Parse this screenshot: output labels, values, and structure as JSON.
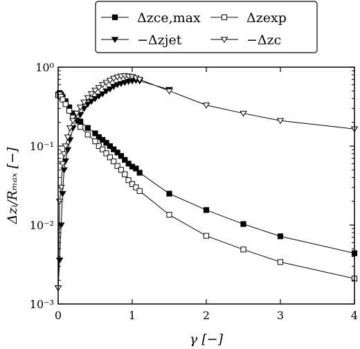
{
  "chart_data": {
    "type": "line",
    "xlabel": "γ [−]",
    "ylabel": "Δzᵢ/Rₘₐₓ [−]",
    "xlim": [
      0,
      4
    ],
    "ylim": [
      0.001,
      1
    ],
    "yscale": "log",
    "grid": false,
    "legend_position": "top-center",
    "x_ticks": [
      {
        "value": 0,
        "label": "0"
      },
      {
        "value": 1,
        "label": "1"
      },
      {
        "value": 2,
        "label": "2"
      },
      {
        "value": 3,
        "label": "3"
      },
      {
        "value": 4,
        "label": "4"
      }
    ],
    "y_ticks": [
      {
        "value": 0.001,
        "label": "10⁻³"
      },
      {
        "value": 0.01,
        "label": "10⁻²"
      },
      {
        "value": 0.1,
        "label": "10⁻¹"
      },
      {
        "value": 1,
        "label": "10⁰"
      }
    ],
    "series": [
      {
        "name": "Δz_ce,max",
        "legend_label": "Δzce,max",
        "marker": "square-filled",
        "color": "#000000",
        "x": [
          0.0,
          0.02,
          0.04,
          0.06,
          0.1,
          0.15,
          0.2,
          0.3,
          0.4,
          0.5,
          0.55,
          0.6,
          0.65,
          0.7,
          0.75,
          0.8,
          0.85,
          0.9,
          0.95,
          1.0,
          1.05,
          1.1,
          1.5,
          2.0,
          2.5,
          3.0,
          4.0
        ],
        "y": [
          0.45,
          0.47,
          0.45,
          0.42,
          0.37,
          0.31,
          0.26,
          0.205,
          0.17,
          0.145,
          0.13,
          0.12,
          0.11,
          0.1,
          0.091,
          0.083,
          0.075,
          0.067,
          0.06,
          0.055,
          0.052,
          0.046,
          0.025,
          0.0155,
          0.0103,
          0.0072,
          0.0044
        ]
      },
      {
        "name": "Δz_exp",
        "legend_label": "Δzexp",
        "marker": "square-open",
        "color": "#000000",
        "x": [
          0.0,
          0.02,
          0.04,
          0.06,
          0.1,
          0.15,
          0.2,
          0.3,
          0.4,
          0.5,
          0.55,
          0.6,
          0.65,
          0.7,
          0.75,
          0.8,
          0.85,
          0.9,
          0.95,
          1.0,
          1.05,
          1.1,
          1.5,
          2.0,
          2.5,
          3.0,
          4.0
        ],
        "y": [
          0.44,
          0.45,
          0.42,
          0.39,
          0.34,
          0.28,
          0.23,
          0.175,
          0.14,
          0.115,
          0.1,
          0.091,
          0.081,
          0.072,
          0.064,
          0.056,
          0.05,
          0.044,
          0.037,
          0.033,
          0.03,
          0.027,
          0.0135,
          0.0073,
          0.0049,
          0.0034,
          0.0021
        ]
      },
      {
        "name": "−Δz_jet",
        "legend_label": "−Δzjet",
        "marker": "triangle-down-filled",
        "color": "#000000",
        "x": [
          0.0,
          0.02,
          0.04,
          0.06,
          0.08,
          0.1,
          0.13,
          0.16,
          0.2,
          0.25,
          0.3,
          0.35,
          0.4,
          0.45,
          0.5,
          0.55,
          0.6,
          0.65,
          0.7,
          0.75,
          0.8,
          0.85,
          0.9,
          0.95,
          1.0,
          1.05,
          1.1,
          1.5
        ],
        "y": [
          0.0016,
          0.0036,
          0.01,
          0.025,
          0.05,
          0.065,
          0.09,
          0.12,
          0.17,
          0.21,
          0.25,
          0.3,
          0.34,
          0.37,
          0.4,
          0.43,
          0.46,
          0.5,
          0.53,
          0.57,
          0.6,
          0.62,
          0.64,
          0.66,
          0.67,
          0.68,
          0.67,
          0.52
        ]
      },
      {
        "name": "−Δz_c",
        "legend_label": "−Δzc",
        "marker": "triangle-down-open",
        "color": "#000000",
        "x": [
          0.0,
          0.02,
          0.04,
          0.06,
          0.08,
          0.1,
          0.13,
          0.16,
          0.2,
          0.25,
          0.3,
          0.35,
          0.4,
          0.45,
          0.5,
          0.55,
          0.6,
          0.65,
          0.7,
          0.75,
          0.8,
          0.85,
          0.9,
          0.95,
          1.0,
          1.05,
          1.1,
          1.5,
          2.0,
          2.5,
          3.0,
          4.0
        ],
        "y": [
          0.0016,
          0.02,
          0.03,
          0.06,
          0.08,
          0.1,
          0.13,
          0.17,
          0.21,
          0.26,
          0.31,
          0.36,
          0.41,
          0.46,
          0.51,
          0.55,
          0.6,
          0.64,
          0.68,
          0.72,
          0.75,
          0.77,
          0.78,
          0.77,
          0.76,
          0.73,
          0.7,
          0.5,
          0.33,
          0.26,
          0.21,
          0.165
        ]
      }
    ]
  }
}
